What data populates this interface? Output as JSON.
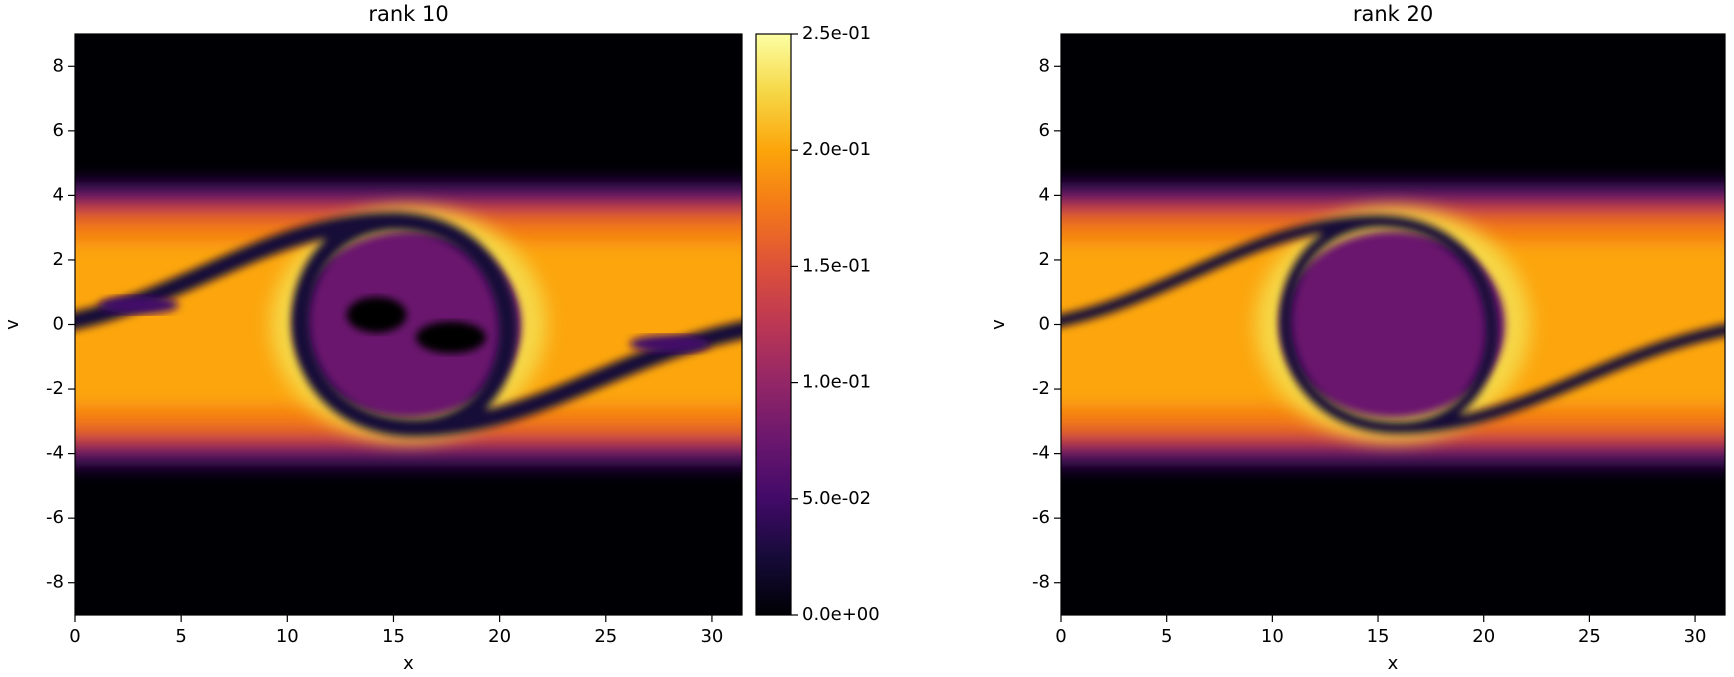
{
  "chart_data": [
    {
      "type": "heatmap",
      "title": "rank 10",
      "xlabel": "x",
      "ylabel": "v",
      "xlim": [
        0,
        31.4159
      ],
      "xticks": [
        0,
        5,
        10,
        15,
        20,
        25,
        30
      ],
      "ylim": [
        -9,
        9
      ],
      "yticks": [
        -8,
        -6,
        -4,
        -2,
        0,
        2,
        4,
        6,
        8
      ],
      "colormap": [
        "#000004",
        "#160b39",
        "#420a68",
        "#6a176e",
        "#932667",
        "#bc3754",
        "#dd513a",
        "#f37819",
        "#fca50a",
        "#f6d746",
        "#fcffa4"
      ],
      "colorbar": {
        "lim": [
          0,
          0.25
        ],
        "ticks": [
          {
            "value": 0,
            "label": "0.0e+00"
          },
          {
            "value": 0.05,
            "label": "5.0e-02"
          },
          {
            "value": 0.1,
            "label": "1.0e-01"
          },
          {
            "value": 0.15,
            "label": "1.5e-01"
          },
          {
            "value": 0.2,
            "label": "2.0e-01"
          },
          {
            "value": 0.25,
            "label": "2.5e-01"
          }
        ]
      }
    },
    {
      "type": "heatmap",
      "title": "rank 20",
      "xlabel": "x",
      "ylabel": "v",
      "xlim": [
        0,
        31.4159
      ],
      "xticks": [
        0,
        5,
        10,
        15,
        20,
        25,
        30
      ],
      "ylim": [
        -9,
        9
      ],
      "yticks": [
        -8,
        -6,
        -4,
        -2,
        0,
        2,
        4,
        6,
        8
      ],
      "colormap": [
        "#000004",
        "#160b39",
        "#420a68",
        "#6a176e",
        "#932667",
        "#bc3754",
        "#dd513a",
        "#f37819",
        "#fca50a",
        "#f6d746",
        "#fcffa4"
      ]
    }
  ]
}
